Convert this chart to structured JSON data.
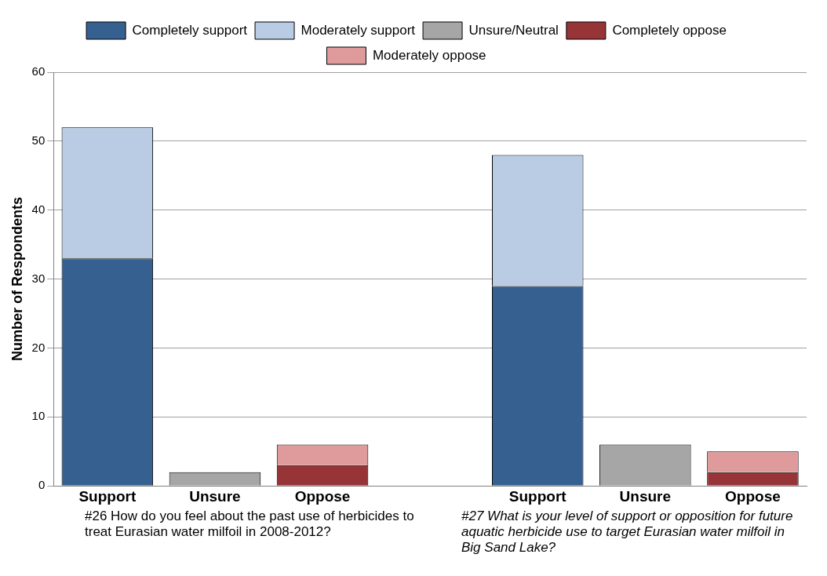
{
  "chart_data": {
    "type": "bar",
    "stacked": true,
    "ylabel": "Number of Respondents",
    "categories": [
      "Support",
      "Unsure",
      "Oppose",
      null,
      "Support",
      "Unsure",
      "Oppose"
    ],
    "series": [
      {
        "name": "Completely support",
        "color": "#36608f",
        "values": [
          33,
          null,
          null,
          null,
          29,
          null,
          null
        ]
      },
      {
        "name": "Moderately support",
        "color": "#b9cce4",
        "values": [
          19,
          null,
          null,
          null,
          19,
          null,
          null
        ]
      },
      {
        "name": "Unsure/Neutral",
        "color": "#a6a6a6",
        "values": [
          null,
          2,
          null,
          null,
          null,
          6,
          null
        ]
      },
      {
        "name": "Completely oppose",
        "color": "#963437",
        "values": [
          null,
          null,
          3,
          null,
          null,
          null,
          2
        ]
      },
      {
        "name": "Moderately oppose",
        "color": "#df9b9c",
        "values": [
          null,
          null,
          3,
          null,
          null,
          null,
          3
        ]
      }
    ],
    "ylim": [
      0,
      60
    ],
    "yticks": [
      0,
      10,
      20,
      30,
      40,
      50,
      60
    ],
    "grid": "y",
    "legend": "top",
    "annotations": [
      "#26 How do you feel about the past use of herbicides to treat Eurasian water milfoil in 2008-2012?",
      "#27 What is your level of support or opposition for future aquatic herbicide use to target Eurasian water milfoil in Big Sand Lake?"
    ]
  }
}
